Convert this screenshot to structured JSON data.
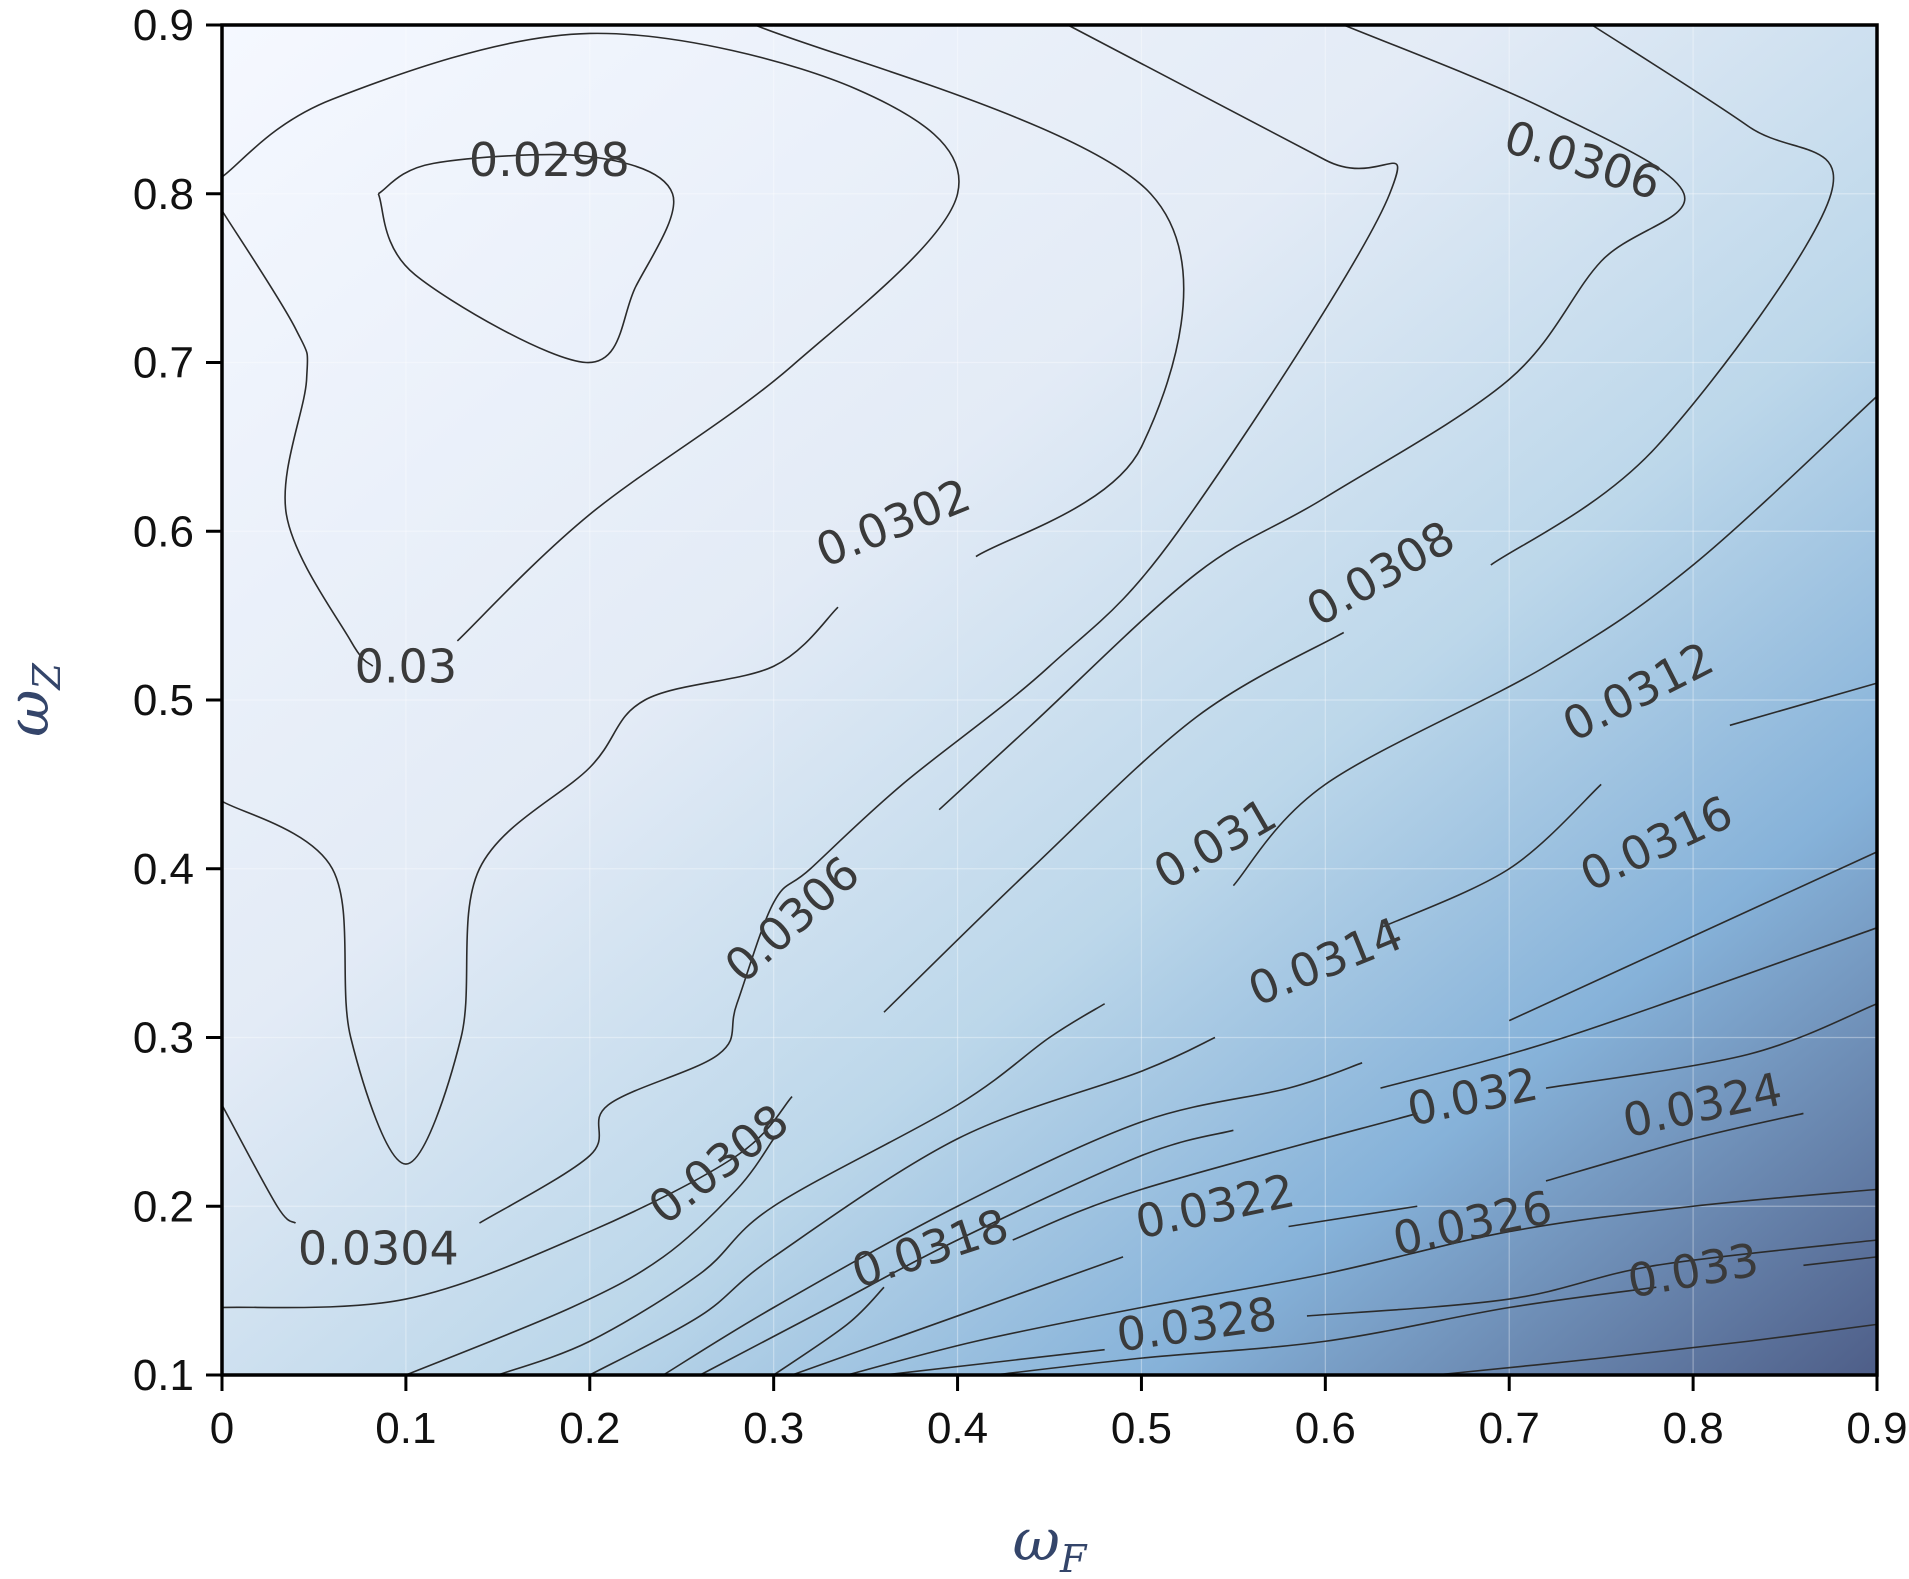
{
  "chart_data": {
    "type": "contour",
    "title": "",
    "xlabel": {
      "main": "ω",
      "sub": "F"
    },
    "ylabel": {
      "main": "ω",
      "sub": "Z"
    },
    "xlim": [
      0,
      0.9
    ],
    "ylim": [
      0.1,
      0.9
    ],
    "x_ticks": [
      0,
      0.1,
      0.2,
      0.3,
      0.4,
      0.5,
      0.6,
      0.7,
      0.8,
      0.9
    ],
    "y_ticks": [
      0.1,
      0.2,
      0.3,
      0.4,
      0.5,
      0.6,
      0.7,
      0.8,
      0.9
    ],
    "x_tick_labels": [
      "0",
      "0.1",
      "0.2",
      "0.3",
      "0.4",
      "0.5",
      "0.6",
      "0.7",
      "0.8",
      "0.9"
    ],
    "y_tick_labels": [
      "0.1",
      "0.2",
      "0.3",
      "0.4",
      "0.5",
      "0.6",
      "0.7",
      "0.8",
      "0.9"
    ],
    "grid": true,
    "colormap": {
      "low": "#f5f8ff",
      "mid": "#9ac4e0",
      "high": "#4e5e88"
    },
    "value_range": [
      0.0296,
      0.0332
    ],
    "contour_levels": [
      0.0298,
      0.03,
      0.0302,
      0.0304,
      0.0306,
      0.0308,
      0.031,
      0.0312,
      0.0314,
      0.0316,
      0.0318,
      0.032,
      0.0322,
      0.0324,
      0.0326,
      0.0328,
      0.033
    ],
    "contour_labels": [
      {
        "text": "0.0298",
        "x": 0.178,
        "y": 0.82,
        "angle": 0
      },
      {
        "text": "0.03",
        "x": 0.1,
        "y": 0.52,
        "angle": 0
      },
      {
        "text": "0.0302",
        "x": 0.365,
        "y": 0.605,
        "angle": -22
      },
      {
        "text": "0.0304",
        "x": 0.085,
        "y": 0.175,
        "angle": 0
      },
      {
        "text": "0.0306",
        "x": 0.74,
        "y": 0.82,
        "angle": 18
      },
      {
        "text": "0.0306",
        "x": 0.31,
        "y": 0.37,
        "angle": -42
      },
      {
        "text": "0.0308",
        "x": 0.63,
        "y": 0.575,
        "angle": -30
      },
      {
        "text": "0.0308",
        "x": 0.27,
        "y": 0.225,
        "angle": -38
      },
      {
        "text": "0.031",
        "x": 0.54,
        "y": 0.415,
        "angle": -30
      },
      {
        "text": "0.0312",
        "x": 0.77,
        "y": 0.505,
        "angle": -27
      },
      {
        "text": "0.0314",
        "x": 0.6,
        "y": 0.345,
        "angle": -22
      },
      {
        "text": "0.0316",
        "x": 0.78,
        "y": 0.415,
        "angle": -25
      },
      {
        "text": "0.0318",
        "x": 0.385,
        "y": 0.175,
        "angle": -18
      },
      {
        "text": "0.032",
        "x": 0.68,
        "y": 0.265,
        "angle": -12
      },
      {
        "text": "0.0322",
        "x": 0.54,
        "y": 0.2,
        "angle": -12
      },
      {
        "text": "0.0324",
        "x": 0.805,
        "y": 0.26,
        "angle": -12
      },
      {
        "text": "0.0326",
        "x": 0.68,
        "y": 0.19,
        "angle": -12
      },
      {
        "text": "0.0328",
        "x": 0.53,
        "y": 0.13,
        "angle": -8
      },
      {
        "text": "0.033",
        "x": 0.8,
        "y": 0.162,
        "angle": -10
      }
    ],
    "contour_lines": [
      [
        [
          0.085,
          0.8
        ],
        [
          0.115,
          0.818
        ],
        [
          0.2,
          0.822
        ],
        [
          0.245,
          0.8
        ],
        [
          0.225,
          0.745
        ],
        [
          0.198,
          0.7
        ],
        [
          0.105,
          0.752
        ],
        [
          0.085,
          0.8
        ]
      ],
      [
        [
          0,
          0.79
        ],
        [
          0.04,
          0.72
        ],
        [
          0.046,
          0.69
        ],
        [
          0.035,
          0.61
        ],
        [
          0.07,
          0.535
        ],
        [
          0.082,
          0.52
        ]
      ],
      [
        [
          0.128,
          0.535
        ],
        [
          0.2,
          0.61
        ],
        [
          0.31,
          0.698
        ],
        [
          0.4,
          0.8
        ],
        [
          0.345,
          0.862
        ],
        [
          0.2,
          0.895
        ],
        [
          0.06,
          0.856
        ],
        [
          0,
          0.81
        ]
      ],
      [
        [
          0,
          0.44
        ],
        [
          0.06,
          0.4
        ],
        [
          0.07,
          0.3
        ],
        [
          0.1,
          0.225
        ],
        [
          0.13,
          0.3
        ],
        [
          0.14,
          0.4
        ],
        [
          0.2,
          0.46
        ],
        [
          0.23,
          0.5
        ],
        [
          0.3,
          0.52
        ],
        [
          0.335,
          0.555
        ]
      ],
      [
        [
          0.41,
          0.585
        ],
        [
          0.5,
          0.65
        ],
        [
          0.505,
          0.8
        ],
        [
          0.29,
          0.9
        ]
      ],
      [
        [
          0,
          0.26
        ],
        [
          0.03,
          0.2
        ],
        [
          0.04,
          0.19
        ]
      ],
      [
        [
          0.14,
          0.19
        ],
        [
          0.2,
          0.23
        ],
        [
          0.21,
          0.26
        ],
        [
          0.27,
          0.29
        ],
        [
          0.28,
          0.32
        ],
        [
          0.3,
          0.38
        ],
        [
          0.32,
          0.4
        ],
        [
          0.37,
          0.45
        ],
        [
          0.45,
          0.52
        ],
        [
          0.52,
          0.6
        ],
        [
          0.635,
          0.8
        ],
        [
          0.6,
          0.82
        ],
        [
          0.46,
          0.9
        ]
      ],
      [
        [
          0,
          0.14
        ],
        [
          0.1,
          0.145
        ],
        [
          0.2,
          0.185
        ],
        [
          0.28,
          0.23
        ],
        [
          0.31,
          0.265
        ]
      ],
      [
        [
          0.39,
          0.435
        ],
        [
          0.44,
          0.485
        ],
        [
          0.53,
          0.575
        ],
        [
          0.6,
          0.62
        ],
        [
          0.7,
          0.69
        ],
        [
          0.75,
          0.76
        ],
        [
          0.795,
          0.8
        ],
        [
          0.72,
          0.85
        ],
        [
          0.61,
          0.9
        ]
      ],
      [
        [
          0.1,
          0.1
        ],
        [
          0.19,
          0.14
        ],
        [
          0.24,
          0.17
        ],
        [
          0.28,
          0.21
        ],
        [
          0.3,
          0.24
        ]
      ],
      [
        [
          0.36,
          0.315
        ],
        [
          0.44,
          0.4
        ],
        [
          0.53,
          0.49
        ],
        [
          0.61,
          0.54
        ]
      ],
      [
        [
          0.69,
          0.58
        ],
        [
          0.78,
          0.65
        ],
        [
          0.875,
          0.8
        ],
        [
          0.83,
          0.84
        ],
        [
          0.745,
          0.9
        ]
      ],
      [
        [
          0.15,
          0.1
        ],
        [
          0.2,
          0.12
        ],
        [
          0.26,
          0.16
        ],
        [
          0.3,
          0.2
        ],
        [
          0.4,
          0.26
        ],
        [
          0.45,
          0.3
        ],
        [
          0.48,
          0.32
        ]
      ],
      [
        [
          0.55,
          0.39
        ],
        [
          0.6,
          0.45
        ],
        [
          0.72,
          0.52
        ],
        [
          0.8,
          0.58
        ],
        [
          0.9,
          0.68
        ]
      ],
      [
        [
          0.2,
          0.1
        ],
        [
          0.26,
          0.135
        ],
        [
          0.3,
          0.17
        ],
        [
          0.4,
          0.24
        ],
        [
          0.5,
          0.28
        ],
        [
          0.54,
          0.3
        ]
      ],
      [
        [
          0.63,
          0.365
        ],
        [
          0.7,
          0.4
        ],
        [
          0.75,
          0.45
        ]
      ],
      [
        [
          0.82,
          0.485
        ],
        [
          0.9,
          0.51
        ]
      ],
      [
        [
          0.24,
          0.1
        ],
        [
          0.3,
          0.14
        ],
        [
          0.4,
          0.2
        ],
        [
          0.5,
          0.25
        ],
        [
          0.58,
          0.27
        ],
        [
          0.62,
          0.285
        ]
      ],
      [
        [
          0.7,
          0.31
        ],
        [
          0.8,
          0.36
        ],
        [
          0.9,
          0.41
        ]
      ],
      [
        [
          0.26,
          0.1
        ],
        [
          0.33,
          0.14
        ],
        [
          0.4,
          0.18
        ],
        [
          0.5,
          0.23
        ],
        [
          0.55,
          0.245
        ]
      ],
      [
        [
          0.63,
          0.27
        ],
        [
          0.73,
          0.3
        ],
        [
          0.9,
          0.365
        ]
      ],
      [
        [
          0.3,
          0.1
        ],
        [
          0.34,
          0.13
        ],
        [
          0.36,
          0.152
        ]
      ],
      [
        [
          0.43,
          0.18
        ],
        [
          0.5,
          0.21
        ],
        [
          0.65,
          0.255
        ]
      ],
      [
        [
          0.72,
          0.27
        ],
        [
          0.83,
          0.29
        ],
        [
          0.9,
          0.32
        ]
      ],
      [
        [
          0.31,
          0.1
        ],
        [
          0.4,
          0.135
        ],
        [
          0.49,
          0.17
        ]
      ],
      [
        [
          0.58,
          0.188
        ],
        [
          0.65,
          0.2
        ]
      ],
      [
        [
          0.72,
          0.215
        ],
        [
          0.8,
          0.24
        ],
        [
          0.86,
          0.255
        ]
      ],
      [
        [
          0.34,
          0.1
        ],
        [
          0.41,
          0.12
        ],
        [
          0.5,
          0.14
        ],
        [
          0.6,
          0.16
        ],
        [
          0.7,
          0.185
        ],
        [
          0.8,
          0.2
        ],
        [
          0.9,
          0.21
        ]
      ],
      [
        [
          0.36,
          0.1
        ],
        [
          0.48,
          0.115
        ]
      ],
      [
        [
          0.59,
          0.135
        ],
        [
          0.7,
          0.145
        ],
        [
          0.78,
          0.165
        ],
        [
          0.9,
          0.18
        ]
      ],
      [
        [
          0.42,
          0.1
        ],
        [
          0.5,
          0.11
        ],
        [
          0.6,
          0.12
        ],
        [
          0.7,
          0.14
        ],
        [
          0.78,
          0.152
        ]
      ],
      [
        [
          0.86,
          0.165
        ],
        [
          0.9,
          0.17
        ]
      ],
      [
        [
          0.66,
          0.1
        ],
        [
          0.75,
          0.11
        ],
        [
          0.83,
          0.12
        ],
        [
          0.9,
          0.13
        ]
      ]
    ]
  }
}
